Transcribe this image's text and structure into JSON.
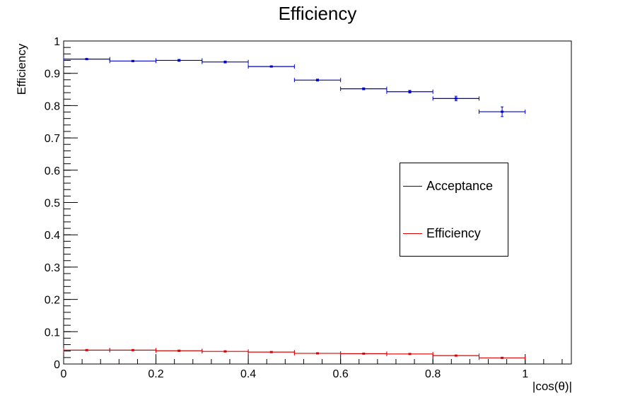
{
  "chart_data": {
    "type": "scatter",
    "title": "Efficiency",
    "xlabel": "|cos(θ)|",
    "ylabel": "Efficiency",
    "xlim": [
      0,
      1.1
    ],
    "ylim": [
      0,
      1
    ],
    "x_ticks": [
      0,
      0.2,
      0.4,
      0.6,
      0.8,
      1
    ],
    "x_tick_labels": [
      "0",
      "0.2",
      "0.4",
      "0.6",
      "0.8",
      "1"
    ],
    "y_ticks": [
      0,
      0.1,
      0.2,
      0.3,
      0.4,
      0.5,
      0.6,
      0.7,
      0.8,
      0.9,
      1
    ],
    "y_tick_labels": [
      "0",
      "0.1",
      "0.2",
      "0.3",
      "0.4",
      "0.5",
      "0.6",
      "0.7",
      "0.8",
      "0.9",
      "1"
    ],
    "grid": false,
    "legend_position": "right",
    "bin_width": 0.1,
    "series": [
      {
        "name": "Acceptance",
        "color": "#0000cc",
        "x": [
          0.05,
          0.15,
          0.25,
          0.35,
          0.45,
          0.55,
          0.65,
          0.75,
          0.85,
          0.95
        ],
        "y": [
          0.944,
          0.938,
          0.94,
          0.935,
          0.921,
          0.879,
          0.852,
          0.843,
          0.822,
          0.781
        ],
        "yerr": [
          0.002,
          0.002,
          0.003,
          0.003,
          0.002,
          0.003,
          0.003,
          0.004,
          0.007,
          0.015
        ]
      },
      {
        "name": "Efficiency",
        "color": "#dd0000",
        "x": [
          0.05,
          0.15,
          0.25,
          0.35,
          0.45,
          0.55,
          0.65,
          0.75,
          0.85,
          0.95
        ],
        "y": [
          0.043,
          0.043,
          0.041,
          0.039,
          0.037,
          0.033,
          0.032,
          0.031,
          0.026,
          0.019
        ],
        "yerr": [
          0.001,
          0.001,
          0.002,
          0.002,
          0.001,
          0.001,
          0.001,
          0.001,
          0.001,
          0.001
        ]
      }
    ]
  }
}
